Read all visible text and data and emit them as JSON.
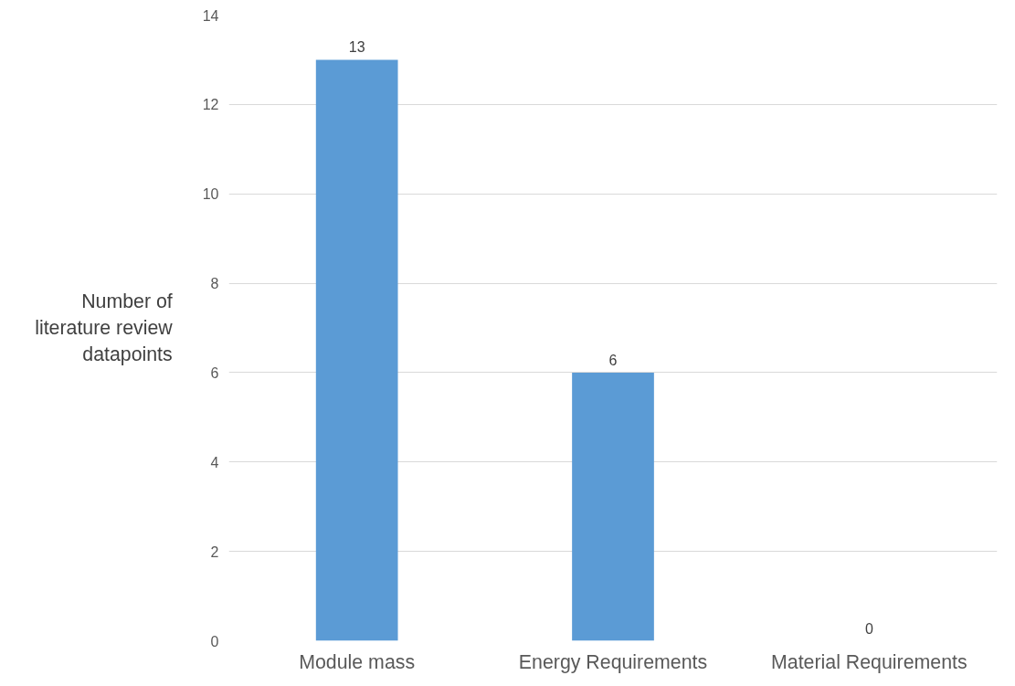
{
  "chart_data": {
    "type": "bar",
    "ylabel": "Number of literature review datapoints",
    "categories": [
      "Module mass",
      "Energy Requirements",
      "Material Requirements"
    ],
    "values": [
      13,
      6,
      0
    ],
    "color": "#5b9bd5",
    "ylim": [
      0,
      14
    ],
    "yticks": [
      0,
      2,
      4,
      6,
      8,
      10,
      12,
      14
    ],
    "grid": "y",
    "data_labels": true
  }
}
